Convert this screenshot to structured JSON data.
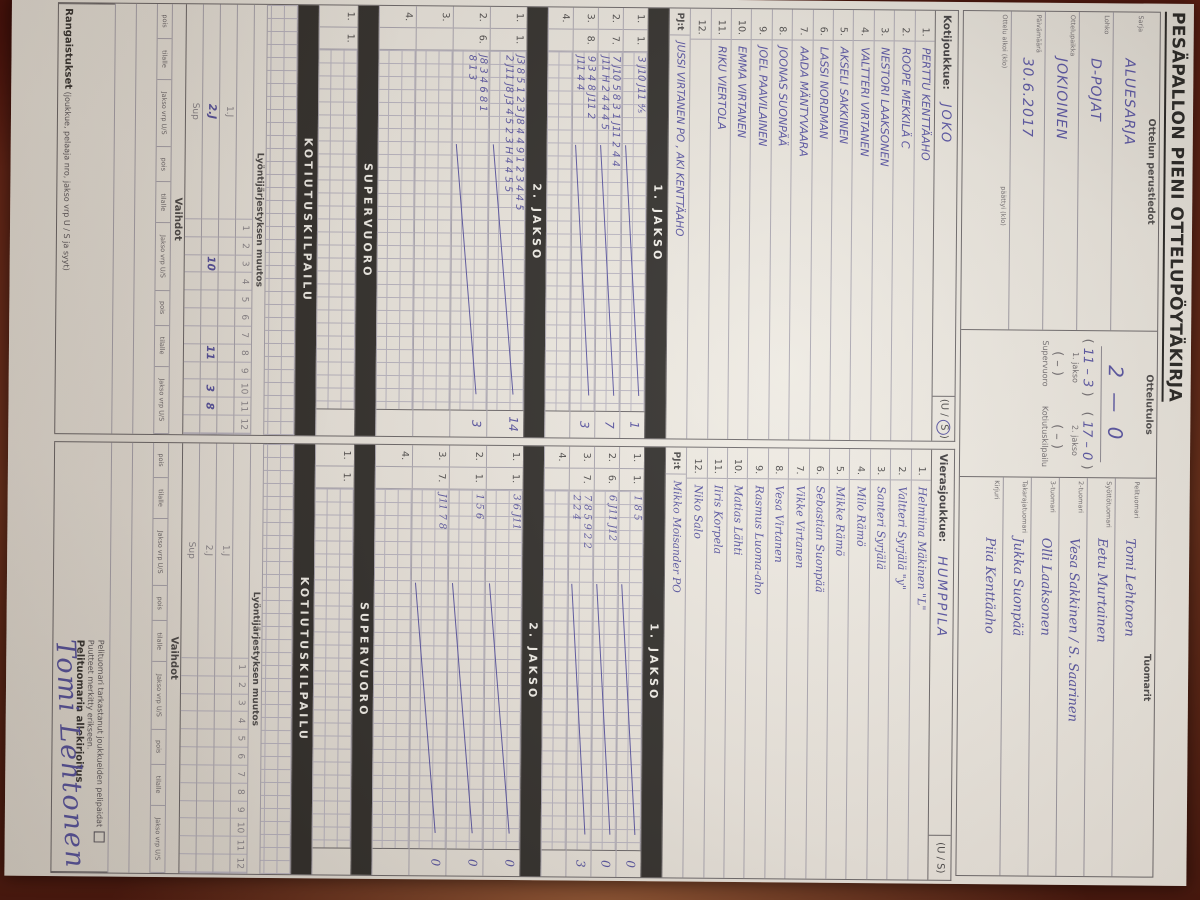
{
  "title": "PESÄPALLON PIENI OTTELUPÖYTÄKIRJA",
  "info": {
    "header": "Ottelun perustiedot",
    "fields": [
      {
        "label": "Sarja",
        "value": "ALUESARJA"
      },
      {
        "label": "Lohko",
        "value": "D-POJAT"
      },
      {
        "label": "Ottelupaikka",
        "value": "JOKIOINEN"
      },
      {
        "label": "Päivämäärä",
        "value": "30.6.2017"
      },
      {
        "label": "Ottelu alkoi (klo)",
        "value": "",
        "label2": "päättyi (klo)"
      }
    ]
  },
  "score": {
    "header": "Ottelutulos",
    "main": "2 — 0",
    "periods": [
      {
        "open": "(",
        "value": "11 – 3",
        "close": ")",
        "label": "1. jakso"
      },
      {
        "open": "(",
        "value": "17 – 0",
        "close": ")",
        "label": "2. jakso"
      }
    ],
    "extras": [
      {
        "open": "(",
        "value": "–",
        "close": ")",
        "label": "Supervuoro"
      },
      {
        "open": "(",
        "value": "–",
        "close": ")",
        "label": "Kotiutuskilpailu"
      }
    ]
  },
  "referees": {
    "header": "Tuomarit",
    "rows": [
      {
        "label": "Pelituomari",
        "value": "Tomi Lehtonen"
      },
      {
        "label": "Syöttötuomari",
        "value": "Eetu Murtainen"
      },
      {
        "label": "2-tuomari",
        "value": "Vesa Sakkinen / S. Saarinen"
      },
      {
        "label": "3-tuomari",
        "value": "Olli Laaksonen"
      },
      {
        "label": "Takarajatuomari",
        "value": "Jukka Suonpää"
      },
      {
        "label": "Kirjuri",
        "value": "Piia Kenttäaho"
      }
    ]
  },
  "home": {
    "label": "Kotijoukkue:",
    "team": "JOKO",
    "us_prefix": "(U /",
    "us_circled": "S",
    "us_suffix": ")",
    "players": [
      {
        "num": "1.",
        "name": "PERTTU KENTTÄAHO"
      },
      {
        "num": "2.",
        "name": "ROOPE MEKKILÄ   C"
      },
      {
        "num": "3.",
        "name": "NESTORI LAAKSONEN"
      },
      {
        "num": "4.",
        "name": "VALTTERI VIRTANEN"
      },
      {
        "num": "5.",
        "name": "AKSELI SAKKINEN"
      },
      {
        "num": "6.",
        "name": "LASSI NORDMAN"
      },
      {
        "num": "7.",
        "name": "AADA MÄNTYVAARA"
      },
      {
        "num": "8.",
        "name": "JOONAS SUONPÄÄ"
      },
      {
        "num": "9.",
        "name": "JOEL PAAVILAINEN"
      },
      {
        "num": "10.",
        "name": "EMMA VIRTANEN"
      },
      {
        "num": "11.",
        "name": "RIKU VIERTOLA"
      },
      {
        "num": "12.",
        "name": ""
      }
    ],
    "pj_label": "PJ:t",
    "pj": "JUSSI VIRTANEN PO , AKI KENTTÄAHO"
  },
  "away": {
    "label": "Vierasjoukkue:",
    "team": "HUMPPILA",
    "us_plain": "(U / S)",
    "players": [
      {
        "num": "1.",
        "name": "Helmiina Mäkinen \"L\""
      },
      {
        "num": "2.",
        "name": "Valtteri Syrjälä \"y\""
      },
      {
        "num": "3.",
        "name": "Santeri Syrjälä"
      },
      {
        "num": "4.",
        "name": "Milo Rämö"
      },
      {
        "num": "5.",
        "name": "Mikke Rämö"
      },
      {
        "num": "6.",
        "name": "Sebastian Suonpää"
      },
      {
        "num": "7.",
        "name": "Vikke Virtanen"
      },
      {
        "num": "8.",
        "name": "Vesa Virtanen"
      },
      {
        "num": "9.",
        "name": "Rasmus Luoma-aho"
      },
      {
        "num": "10.",
        "name": "Matias Lähti"
      },
      {
        "num": "11.",
        "name": "Iiris Korpela"
      },
      {
        "num": "12.",
        "name": "Niko Salo"
      }
    ],
    "pj_label": "PJ:t",
    "pj": "Mikko Moisander PO"
  },
  "jakso1": {
    "bar": "1. JAKSO",
    "home": [
      {
        "n": "1.",
        "b": "1.",
        "script": "3 J10 J11 ⁴⁄₅",
        "total": "1"
      },
      {
        "n": "2.",
        "b": "7.",
        "script": "7 J10 5  8 3 1 J11 2 4 4\nJ11 H 2 4 4 4 5",
        "total": "7"
      },
      {
        "n": "3.",
        "b": "8.",
        "script": "9 3 4  8 J11 2\nJ11 4 4",
        "total": "3"
      },
      {
        "n": "4.",
        "b": "",
        "script": "",
        "total": ""
      }
    ],
    "away": [
      {
        "n": "1.",
        "b": "1.",
        "script": "1 8 5",
        "total": "0"
      },
      {
        "n": "2.",
        "b": "6.",
        "script": "6 J11 J12",
        "total": "0"
      },
      {
        "n": "3.",
        "b": "7.",
        "script": "7 8 5  9 2 2\n2 2 4",
        "total": "3"
      },
      {
        "n": "4.",
        "b": "",
        "script": "",
        "total": ""
      }
    ]
  },
  "jakso2": {
    "bar": "2. JAKSO",
    "home": [
      {
        "n": "1.",
        "b": "1.",
        "script": "J3 8 5  1 2 3 J8 4 4 9 1 2 3 4 4 5\n2 J11 J8 J3 4 5 2 3 H 4 4 5 5",
        "total": "14"
      },
      {
        "n": "2.",
        "b": "6.",
        "script": "J8 3 4  6 8 1\n8 1 3",
        "total": "3"
      },
      {
        "n": "3.",
        "b": "",
        "script": "",
        "total": ""
      },
      {
        "n": "4.",
        "b": "",
        "script": "",
        "total": ""
      }
    ],
    "away": [
      {
        "n": "1.",
        "b": "1.",
        "script": "3 6 J11",
        "total": "0"
      },
      {
        "n": "2.",
        "b": "1.",
        "script": "1 5 6",
        "total": "0"
      },
      {
        "n": "3.",
        "b": "7.",
        "script": "J11 7 8",
        "total": "0"
      },
      {
        "n": "4.",
        "b": "",
        "script": "",
        "total": ""
      }
    ]
  },
  "supervuoro": {
    "bar": "SUPERVUORO",
    "home": {
      "n": "1.",
      "b": "1.",
      "script": "",
      "total": ""
    },
    "away": {
      "n": "1.",
      "b": "1.",
      "script": "",
      "total": ""
    }
  },
  "kotiutus": {
    "bar": "KOTIUTUSKILPAILU"
  },
  "batting": {
    "header": "Lyöntijärjestyksen muutos",
    "cols": [
      "1",
      "2",
      "3",
      "4",
      "5",
      "6",
      "7",
      "8",
      "9",
      "10",
      "11",
      "12"
    ],
    "row_labels": [
      "1.J",
      "2.J",
      "Sup"
    ],
    "home_1j": [
      "",
      "",
      "",
      "",
      "",
      "",
      "",
      "",
      "",
      "",
      "",
      ""
    ],
    "home_2j": [
      "",
      "",
      "10",
      "",
      "",
      "",
      "",
      "11",
      "",
      "3",
      "8",
      ""
    ],
    "home_sup": [
      "",
      "",
      "",
      "",
      "",
      "",
      "",
      "",
      "",
      "",
      "",
      ""
    ],
    "away_1j": [
      "",
      "",
      "",
      "",
      "",
      "",
      "",
      "",
      "",
      "",
      "",
      ""
    ],
    "away_2j": [
      "",
      "",
      "",
      "",
      "",
      "",
      "",
      "",
      "",
      "",
      "",
      ""
    ],
    "away_sup": [
      "",
      "",
      "",
      "",
      "",
      "",
      "",
      "",
      "",
      "",
      "",
      ""
    ]
  },
  "vaihdot": {
    "header": "Vaihdot",
    "cols": [
      "pois",
      "tilalle",
      "Jakso vrp U/S",
      "pois",
      "tilalle",
      "Jakso vrp U/S",
      "pois",
      "tilalle",
      "Jakso vrp U/S"
    ]
  },
  "footer": {
    "rangaistukset_bold": "Rangaistukset",
    "rangaistukset_note": "(joukkue, pelaaja nro, jakso vrp U / S ja syyt)",
    "check_line1": "Pelituomari tarkastanut",
    "check_line2": "joukkueiden pelipaidat",
    "check_line3": "Puutteet merkitty erikseen.",
    "sig_label": "Pelituomarin allekirjoitus",
    "signature": "Tomi Lehtonen"
  }
}
